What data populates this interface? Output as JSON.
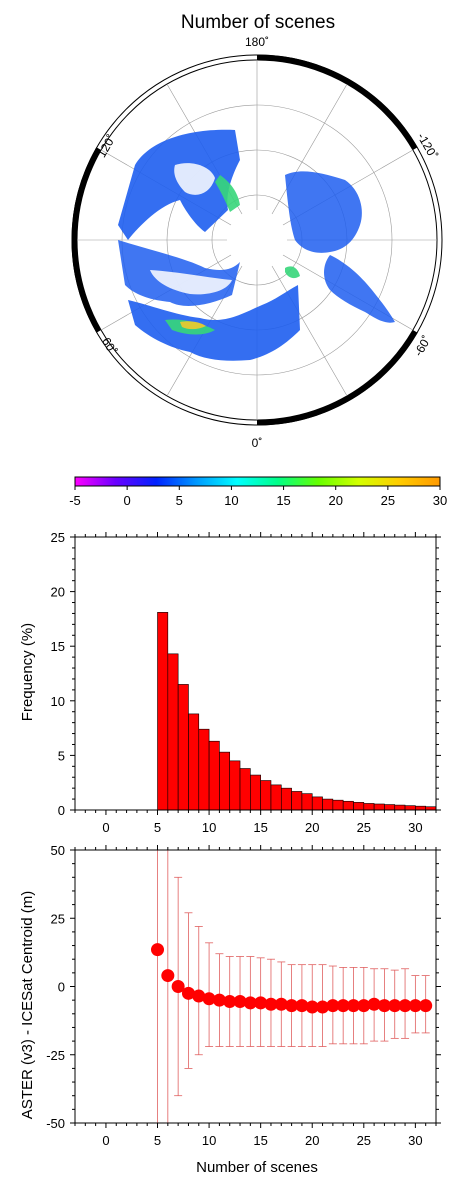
{
  "map": {
    "title": "Number of scenes",
    "longitude_labels": [
      "180˚",
      "120˚",
      "-120˚",
      "60˚",
      "-60˚",
      "0˚"
    ],
    "colors": {
      "ocean": "#ffffff",
      "land_fill": "#1e5ef0",
      "high": "#36d67a",
      "peak": "#e8c830"
    }
  },
  "colorbar": {
    "ticks": [
      "-5",
      "0",
      "5",
      "10",
      "15",
      "20",
      "25",
      "30"
    ],
    "range": [
      -5,
      30
    ],
    "colors": [
      "#ff00ff",
      "#6a00ff",
      "#0022ff",
      "#0099ff",
      "#00ffff",
      "#00ff88",
      "#66ff00",
      "#d4ff00",
      "#ffcc00",
      "#ff9900"
    ]
  },
  "chart_data": [
    {
      "type": "bar",
      "xlabel": "",
      "ylabel": "Frequency (%)",
      "xlim": [
        -3,
        32
      ],
      "ylim": [
        0,
        25
      ],
      "xticks": [
        0,
        5,
        10,
        15,
        20,
        25,
        30
      ],
      "yticks": [
        0,
        5,
        10,
        15,
        20,
        25
      ],
      "bar_color": "#ff0000",
      "categories": [
        5,
        6,
        7,
        8,
        9,
        10,
        11,
        12,
        13,
        14,
        15,
        16,
        17,
        18,
        19,
        20,
        21,
        22,
        23,
        24,
        25,
        26,
        27,
        28,
        29,
        30,
        31
      ],
      "values": [
        18.1,
        14.3,
        11.5,
        8.8,
        7.4,
        6.3,
        5.3,
        4.5,
        3.8,
        3.2,
        2.7,
        2.3,
        2.0,
        1.7,
        1.5,
        1.2,
        1.0,
        0.9,
        0.8,
        0.7,
        0.6,
        0.55,
        0.5,
        0.45,
        0.4,
        0.35,
        0.3
      ]
    },
    {
      "type": "scatter",
      "xlabel": "Number of scenes",
      "ylabel": "ASTER (v3) - ICESat Centroid (m)",
      "xlim": [
        -3,
        32
      ],
      "ylim": [
        -50,
        50
      ],
      "xticks": [
        0,
        5,
        10,
        15,
        20,
        25,
        30
      ],
      "yticks": [
        -50,
        -25,
        0,
        25,
        50
      ],
      "point_color": "#ff0000",
      "x": [
        5,
        6,
        7,
        8,
        9,
        10,
        11,
        12,
        13,
        14,
        15,
        16,
        17,
        18,
        19,
        20,
        21,
        22,
        23,
        24,
        25,
        26,
        27,
        28,
        29,
        30,
        31
      ],
      "y": [
        13.5,
        4,
        0,
        -2.5,
        -3.5,
        -4.5,
        -5,
        -5.5,
        -5.5,
        -6,
        -6,
        -6.5,
        -6.5,
        -7,
        -7,
        -7.5,
        -7.5,
        -7,
        -7,
        -7,
        -7,
        -6.5,
        -7,
        -7,
        -7,
        -7,
        -7
      ],
      "error_upper": [
        55,
        55,
        40,
        27,
        22,
        16,
        12,
        11,
        11,
        11,
        10.5,
        10,
        9,
        8,
        8,
        8,
        8,
        7.5,
        7,
        7,
        7,
        6.5,
        6.5,
        6,
        6.5,
        4,
        4
      ],
      "error_lower": [
        -55,
        -55,
        -40,
        -30,
        -25,
        -22,
        -22,
        -22,
        -22,
        -22,
        -22,
        -22,
        -22,
        -22,
        -22,
        -22,
        -22,
        -21,
        -21,
        -21,
        -21,
        -20,
        -20,
        -19,
        -19,
        -17,
        -17
      ]
    }
  ]
}
